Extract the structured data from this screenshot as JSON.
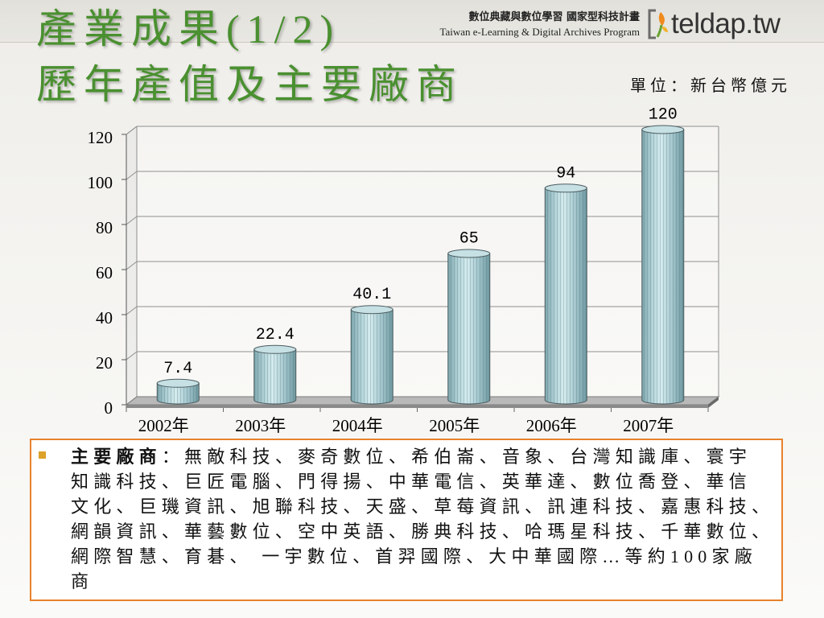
{
  "slide": {
    "title_line1": "產業成果(1/2)",
    "title_line2": "歷年產值及主要廠商"
  },
  "header": {
    "program_zh": "數位典藏與數位學習 國家型科技計畫",
    "program_en": "Taiwan e-Learning & Digital Archives Program",
    "logo_icon": "teldap-logo-icon",
    "logo_text": "teldap.tw"
  },
  "chart_data": {
    "type": "bar",
    "unit_label": "單位：新台幣億元",
    "categories": [
      "2002年",
      "2003年",
      "2004年",
      "2005年",
      "2006年",
      "2007年"
    ],
    "values": [
      7.4,
      22.4,
      40.1,
      65,
      94,
      120
    ],
    "ylim": [
      0,
      120
    ],
    "yticks": [
      0,
      20,
      40,
      60,
      80,
      100,
      120
    ],
    "grid": true
  },
  "vendors": {
    "bullet_icon": "square-bullet-icon",
    "label": "主要廠商",
    "colon": "：",
    "lines": [
      "無敵科技、麥奇數位、希伯崙、音象、台灣知識庫、寰宇",
      "知識科技、巨匠電腦、門得揚、中華電信、英華達、數位喬登、華信",
      "文化、巨璣資訊、旭聯科技、天盛、草莓資訊、訊連科技、嘉惠科技、",
      "網韻資訊、華藝數位、空中英語、勝典科技、哈瑪星科技、千華數位、",
      "網際智慧、育碁、 一宇數位、首羿國際、大中華國際…等約100家廠",
      "商"
    ]
  },
  "colors": {
    "title": "#4a9030",
    "box_border": "#e8822b",
    "bullet": "#dca22a",
    "bar_top": "#c6e0e4"
  }
}
